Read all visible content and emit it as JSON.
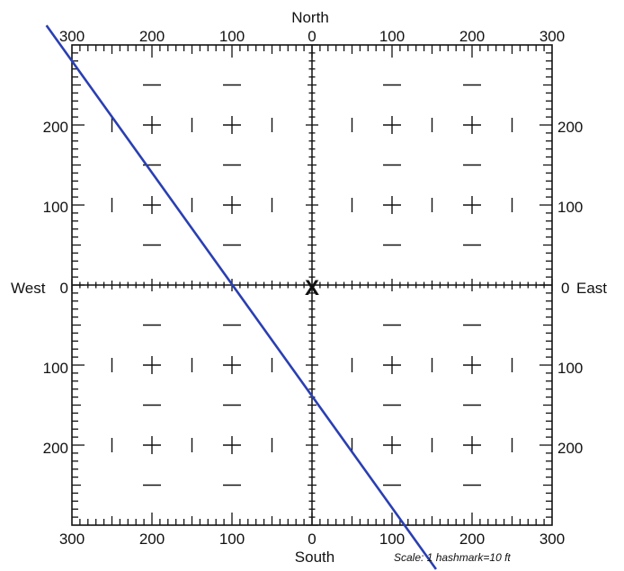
{
  "directions": {
    "north": "North",
    "south": "South",
    "west": "West",
    "east": "East"
  },
  "top_axis_labels": [
    "300",
    "200",
    "100",
    "0",
    "100",
    "200",
    "300"
  ],
  "bottom_axis_labels": [
    "300",
    "200",
    "100",
    "0",
    "100",
    "200",
    "300"
  ],
  "left_axis_labels": {
    "y200": "200",
    "y100": "100",
    "y0": "0",
    "yneg100": "100",
    "yneg200": "200"
  },
  "right_axis_labels": {
    "y200": "200",
    "y100": "100",
    "y0": "0",
    "yneg100": "100",
    "yneg200": "200"
  },
  "center_marker": "X",
  "scale_note": "Scale: 1 hashmark=10 ft",
  "colors": {
    "track_line": "#2a3fb0",
    "ink": "#111111"
  },
  "track_line": {
    "description_units": "feet (x: east positive, y: north positive)",
    "start": [
      -300,
      280
    ],
    "end": [
      155,
      -355
    ]
  }
}
